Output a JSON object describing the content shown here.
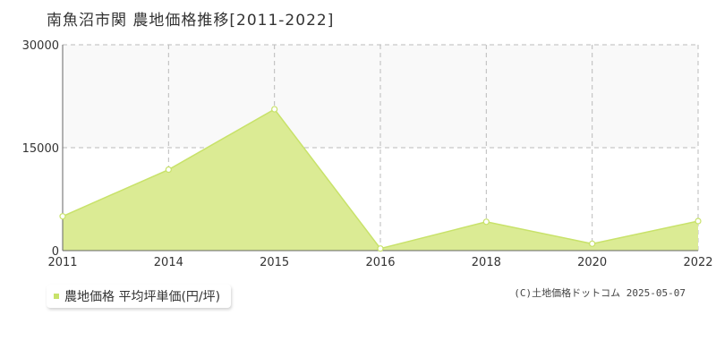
{
  "title": "南魚沼市関 農地価格推移[2011-2022]",
  "legend": {
    "label": "農地価格 平均坪単価(円/坪)"
  },
  "copyright": "(C)土地価格ドットコム 2025-05-07",
  "colors": {
    "area_fill": "#dbeb94",
    "line": "#c8e26a",
    "marker_fill": "#ffffff",
    "grid": "#bbbbbb",
    "upper_band": "#f9f9f9",
    "axis": "#666666"
  },
  "chart_data": {
    "type": "area",
    "title": "南魚沼市関 農地価格推移[2011-2022]",
    "xlabel": "",
    "ylabel": "",
    "x": [
      "2011",
      "2014",
      "2015",
      "2016",
      "2018",
      "2020",
      "2022"
    ],
    "series": [
      {
        "name": "農地価格 平均坪単価(円/坪)",
        "values": [
          5000,
          11800,
          20600,
          300,
          4200,
          1000,
          4300
        ]
      }
    ],
    "ylim": [
      0,
      30000
    ],
    "yticks": [
      "0",
      "15000",
      "30000"
    ],
    "grid": true,
    "legend_position": "bottom-left"
  }
}
